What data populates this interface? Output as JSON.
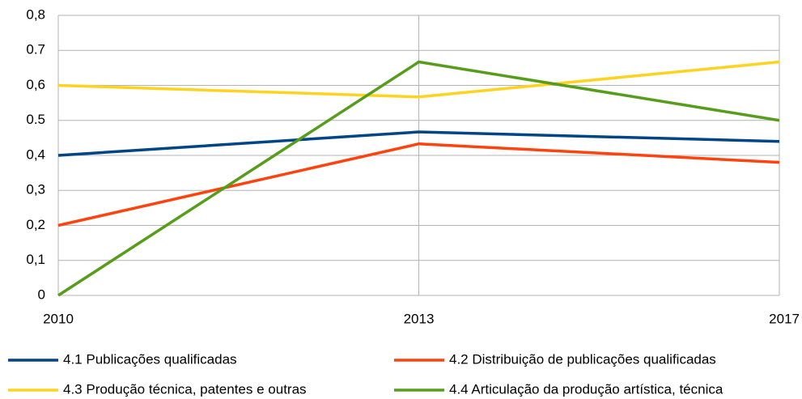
{
  "chart_data": {
    "type": "line",
    "categories": [
      "2010",
      "2013",
      "2017"
    ],
    "series": [
      {
        "name": "4.1 Publicações qualificadas",
        "color": "#004586",
        "values": [
          0.4,
          0.467,
          0.44
        ]
      },
      {
        "name": "4.2 Distribuição de publicações qualificadas",
        "color": "#ff420e",
        "values": [
          0.2,
          0.433,
          0.38
        ]
      },
      {
        "name": "4.3 Produção técnica, patentes e outras",
        "color": "#ffd320",
        "values": [
          0.6,
          0.567,
          0.667
        ]
      },
      {
        "name": "4.4 Articulação da produção artística, técnica",
        "color": "#579d1c",
        "values": [
          0,
          0.667,
          0.5
        ]
      }
    ],
    "ylim": [
      0,
      0.8
    ],
    "yticks": [
      0,
      {
        "value": 0.1,
        "label": "0,1"
      },
      {
        "value": 0.2,
        "label": "0,2"
      },
      {
        "value": 0.3,
        "label": "0,3"
      },
      {
        "value": 0.4,
        "label": "0,4"
      },
      0.5,
      {
        "value": 0.6,
        "label": "0,6"
      },
      0.7,
      {
        "value": 0.8,
        "label": "0,8"
      }
    ],
    "grid": true,
    "legend": "bottom"
  }
}
